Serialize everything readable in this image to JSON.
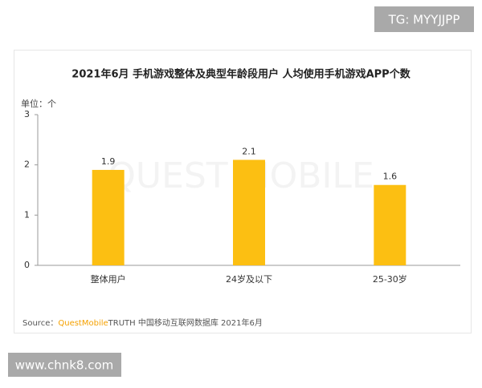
{
  "chart_data": {
    "type": "bar",
    "title": "2021年6月 手机游戏整体及典型年龄段用户 人均使用手机游戏APP个数",
    "unit_label": "单位：个",
    "watermark": "QUEST MOBILE",
    "categories": [
      "整体用户",
      "24岁及以下",
      "25-30岁"
    ],
    "values": [
      1.9,
      2.1,
      1.6
    ],
    "color": "#fcbf12",
    "ylim": [
      0,
      3
    ],
    "yticks": [
      0,
      1,
      2,
      3
    ],
    "grid": false,
    "source_label": "Source：",
    "source_brand": "QuestMobile",
    "source_text": "TRUTH 中国移动互联网数据库 2021年6月"
  },
  "badges": {
    "top": "TG: MYYJJPP",
    "bottom": "www.chnk8.com"
  }
}
